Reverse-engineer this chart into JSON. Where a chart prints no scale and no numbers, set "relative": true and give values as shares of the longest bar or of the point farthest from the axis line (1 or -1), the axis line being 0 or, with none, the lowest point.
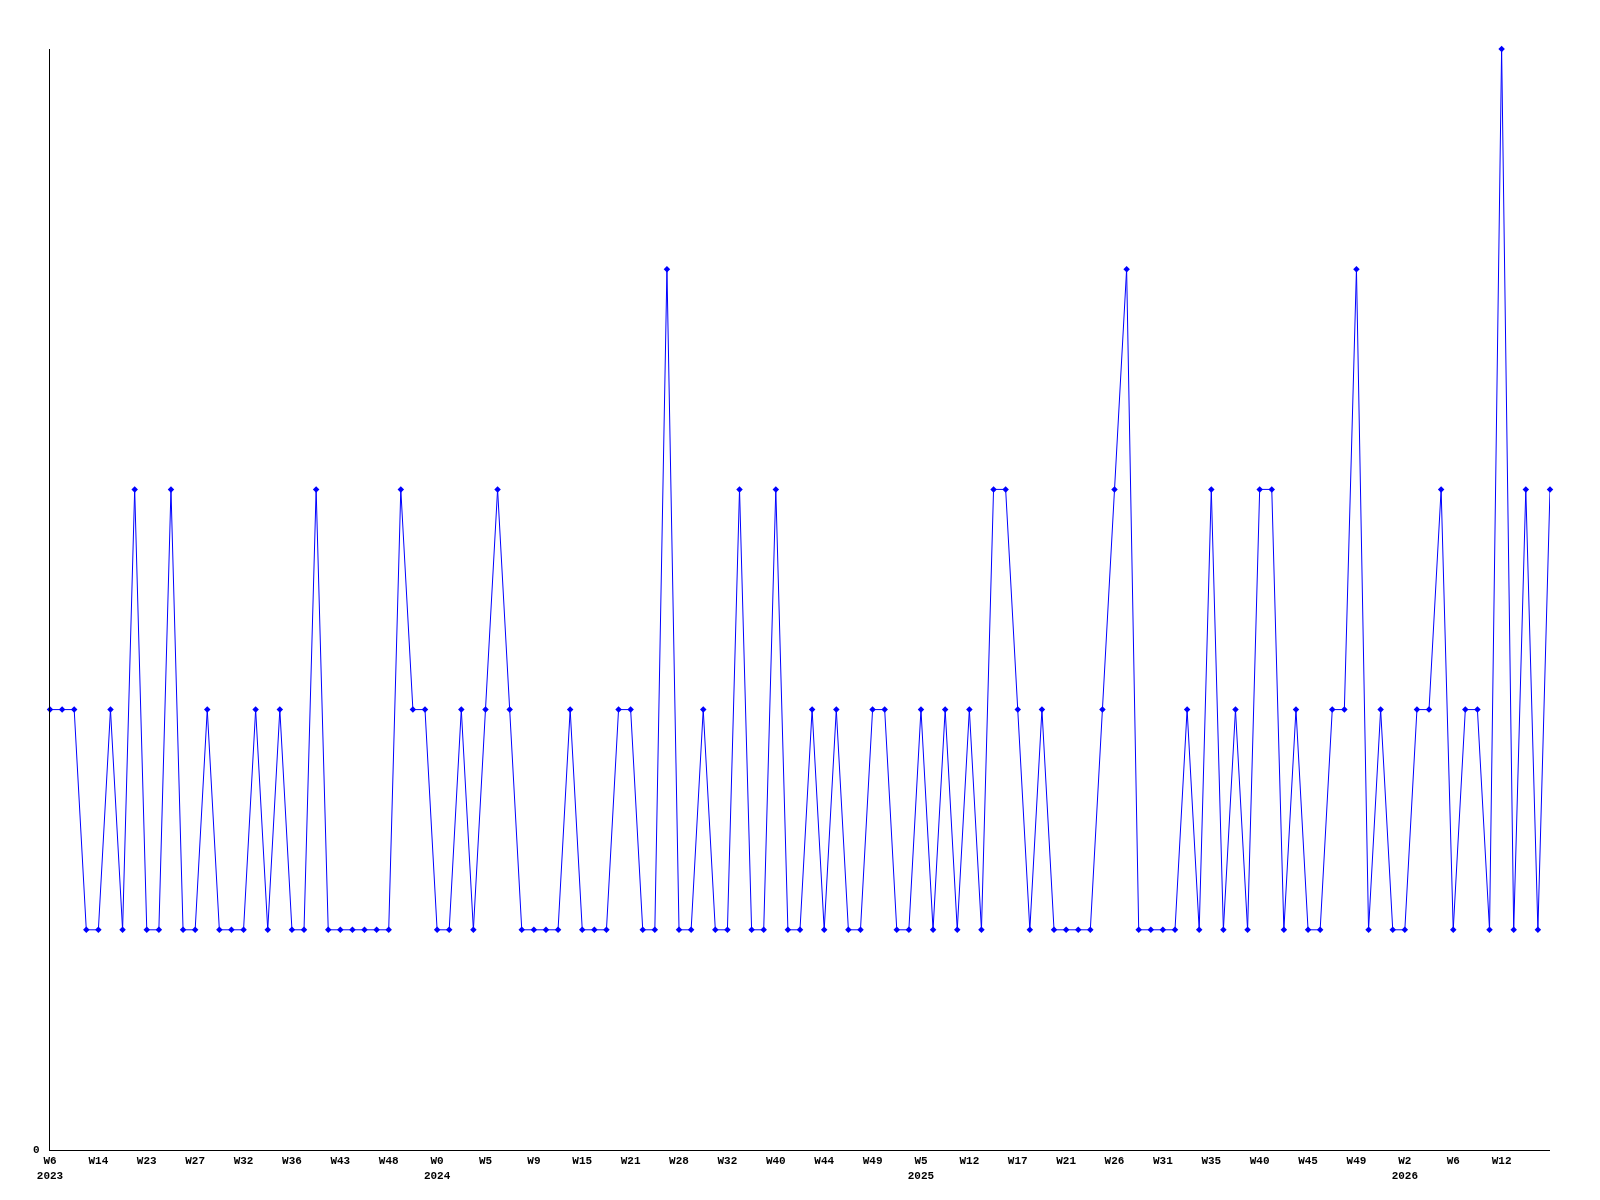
{
  "chart_data": {
    "type": "line",
    "relative": true,
    "color": "#0000ff",
    "marker": "diamond",
    "line_style": "solid",
    "annotations": [
      "0"
    ],
    "categories": [
      "W6\n2023",
      null,
      null,
      null,
      "W14",
      null,
      null,
      null,
      "W23",
      null,
      null,
      null,
      "W27",
      null,
      null,
      null,
      "W32",
      null,
      null,
      null,
      "W36",
      null,
      null,
      null,
      "W43",
      null,
      null,
      null,
      "W48",
      null,
      null,
      null,
      "W0\n2024",
      null,
      null,
      null,
      "W5",
      null,
      null,
      null,
      "W9",
      null,
      null,
      null,
      "W15",
      null,
      null,
      null,
      "W21",
      null,
      null,
      null,
      "W28",
      null,
      null,
      null,
      "W32",
      null,
      null,
      null,
      "W40",
      null,
      null,
      null,
      "W44",
      null,
      null,
      null,
      "W49",
      null,
      null,
      null,
      "W5\n2025",
      null,
      null,
      null,
      "W12",
      null,
      null,
      null,
      "W17",
      null,
      null,
      null,
      "W21",
      null,
      null,
      null,
      "W26",
      null,
      null,
      null,
      "W31",
      null,
      null,
      null,
      "W35",
      null,
      null,
      null,
      "W40",
      null,
      null,
      null,
      "W45",
      null,
      null,
      null,
      "W49",
      null,
      null,
      null,
      "W2\n2026",
      null,
      null,
      null,
      "W6",
      null,
      null,
      null,
      "W12",
      null,
      null,
      null,
      null
    ],
    "values": [
      0.4,
      0.4,
      0.4,
      0.2,
      0.2,
      0.4,
      0.2,
      0.6,
      0.2,
      0.2,
      0.6,
      0.2,
      0.2,
      0.4,
      0.2,
      0.2,
      0.2,
      0.4,
      0.2,
      0.4,
      0.2,
      0.2,
      0.6,
      0.2,
      0.2,
      0.2,
      0.2,
      0.2,
      0.2,
      0.6,
      0.4,
      0.4,
      0.2,
      0.2,
      0.4,
      0.2,
      0.4,
      0.6,
      0.4,
      0.2,
      0.2,
      0.2,
      0.2,
      0.4,
      0.2,
      0.2,
      0.2,
      0.4,
      0.4,
      0.2,
      0.2,
      0.8,
      0.2,
      0.2,
      0.4,
      0.2,
      0.2,
      0.6,
      0.2,
      0.2,
      0.6,
      0.2,
      0.2,
      0.4,
      0.2,
      0.4,
      0.2,
      0.2,
      0.4,
      0.4,
      0.2,
      0.2,
      0.4,
      0.2,
      0.4,
      0.2,
      0.4,
      0.2,
      0.6,
      0.6,
      0.4,
      0.2,
      0.4,
      0.2,
      0.2,
      0.2,
      0.2,
      0.4,
      0.6,
      0.8,
      0.2,
      0.2,
      0.2,
      0.2,
      0.4,
      0.2,
      0.6,
      0.2,
      0.4,
      0.2,
      0.6,
      0.6,
      0.2,
      0.4,
      0.2,
      0.2,
      0.4,
      0.4,
      0.8,
      0.2,
      0.4,
      0.2,
      0.2,
      0.4,
      0.4,
      0.6,
      0.2,
      0.4,
      0.4,
      0.2,
      1.0,
      0.2,
      0.6,
      0.2,
      0.6
    ]
  }
}
